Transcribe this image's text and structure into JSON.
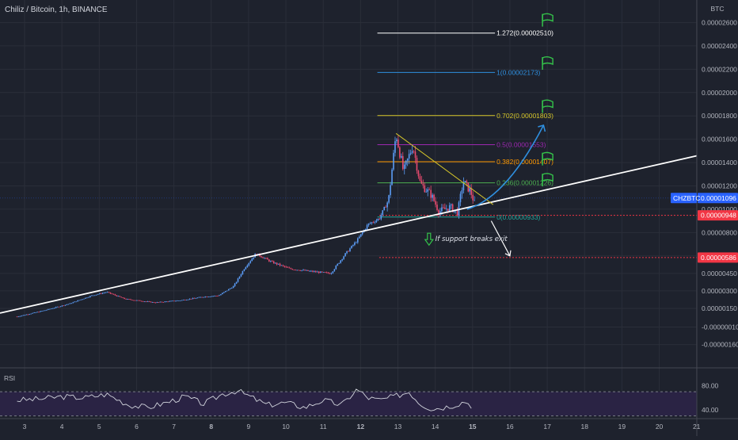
{
  "header": {
    "title": "Chiliz / Bitcoin, 1h, BINANCE"
  },
  "colors": {
    "background": "#1e222d",
    "grid": "#2a2e39",
    "candle_up": "#5b9cf6",
    "candle_down": "#e84a6f",
    "trendline": "#ffffff",
    "wedge_line": "#d6c62a",
    "projection_up": "#2f8fdf",
    "projection_down": "#ffffff",
    "rsi_line": "#d1d4dc",
    "rsi_band": "#2a2344",
    "flag": "#34c24a",
    "tag_current": "#2962ff",
    "tag_red": "#f23645"
  },
  "chart_data": {
    "type": "candlestick",
    "title": "Chiliz / Bitcoin, 1h, BINANCE",
    "y_unit": "BTC",
    "y_ticks": [
      "0.00002600",
      "0.00002400",
      "0.00002200",
      "0.00002000",
      "0.00001800",
      "0.00001600",
      "0.00001400",
      "0.00001200",
      "0.00001000",
      "0.00000800",
      "0.00000600",
      "0.00000450",
      "0.00000300",
      "0.00000150",
      "-0.00000010",
      "-0.00000160"
    ],
    "y_tick_values": [
      2.6e-05,
      2.4e-05,
      2.2e-05,
      2e-05,
      1.8e-05,
      1.6e-05,
      1.4e-05,
      1.2e-05,
      1e-05,
      8e-06,
      6e-06,
      4.5e-06,
      3e-06,
      1.5e-06,
      -1e-07,
      -1.6e-06
    ],
    "x_ticks": [
      "3",
      "4",
      "5",
      "6",
      "7",
      "8",
      "9",
      "10",
      "11",
      "12",
      "13",
      "14",
      "15",
      "16",
      "17",
      "18",
      "19",
      "20",
      "21"
    ],
    "x_tick_days": [
      3,
      4,
      5,
      6,
      7,
      8,
      9,
      10,
      11,
      12,
      13,
      14,
      15,
      16,
      17,
      18,
      19,
      20,
      21
    ],
    "price_path": [
      [
        2.8,
        8e-07
      ],
      [
        3.5,
        1.3e-06
      ],
      [
        4.2,
        1.9e-06
      ],
      [
        4.8,
        2.6e-06
      ],
      [
        5.2,
        2.9e-06
      ],
      [
        5.7,
        2.3e-06
      ],
      [
        6.5,
        2e-06
      ],
      [
        7.2,
        2.2e-06
      ],
      [
        7.8,
        2.5e-06
      ],
      [
        8.2,
        2.6e-06
      ],
      [
        8.6,
        3.4e-06
      ],
      [
        8.9,
        5e-06
      ],
      [
        9.2,
        6.2e-06
      ],
      [
        9.6,
        5.5e-06
      ],
      [
        10.1,
        4.9e-06
      ],
      [
        10.6,
        4.7e-06
      ],
      [
        11.2,
        4.5e-06
      ],
      [
        11.6,
        6.2e-06
      ],
      [
        11.9,
        7.3e-06
      ],
      [
        12.2,
        8.7e-06
      ],
      [
        12.5,
        9.2e-06
      ],
      [
        12.75,
        1.08e-05
      ],
      [
        12.95,
        1.65e-05
      ],
      [
        13.15,
        1.32e-05
      ],
      [
        13.4,
        1.55e-05
      ],
      [
        13.6,
        1.22e-05
      ],
      [
        13.9,
        1.12e-05
      ],
      [
        14.1,
        9.8e-06
      ],
      [
        14.4,
        1.02e-05
      ],
      [
        14.6,
        9.7e-06
      ],
      [
        14.75,
        1.24e-05
      ],
      [
        14.95,
        1.15e-05
      ],
      [
        15.05,
        1.05e-05
      ]
    ],
    "current_price_label": "0.00001096",
    "current_price": 1.096e-05,
    "current_symbol": "CHZBTC",
    "red_levels": [
      {
        "label": "0.00000948",
        "value": 9.48e-06
      },
      {
        "label": "0.00000586",
        "value": 5.86e-06
      }
    ],
    "fib_levels": [
      {
        "label": "1.272(0.00002510)",
        "value": 2.51e-05,
        "color": "#ffffff"
      },
      {
        "label": "1(0.00002173)",
        "value": 2.173e-05,
        "color": "#2f8fdf"
      },
      {
        "label": "0.702(0.00001803)",
        "value": 1.803e-05,
        "color": "#d6c62a"
      },
      {
        "label": "0.5(0.00001553)",
        "value": 1.553e-05,
        "color": "#9c27b0"
      },
      {
        "label": "0.382(0.00001407)",
        "value": 1.407e-05,
        "color": "#ff9800"
      },
      {
        "label": "0.236(0.00001226)",
        "value": 1.226e-05,
        "color": "#4caf50"
      },
      {
        "label": "0(0.00000933)",
        "value": 9.33e-06,
        "color": "#26a69a"
      }
    ],
    "annotation": "If support breaks exit",
    "indicator": {
      "name": "RSI",
      "ticks": [
        "80.00",
        "40.00"
      ],
      "tick_values": [
        80,
        40
      ],
      "bands": [
        70,
        30
      ],
      "path": [
        [
          2.8,
          56
        ],
        [
          3.4,
          58
        ],
        [
          4,
          62
        ],
        [
          4.6,
          60
        ],
        [
          5.2,
          66
        ],
        [
          5.8,
          48
        ],
        [
          6.3,
          44
        ],
        [
          6.8,
          52
        ],
        [
          7.3,
          62
        ],
        [
          7.8,
          50
        ],
        [
          8.3,
          66
        ],
        [
          8.7,
          72
        ],
        [
          9.1,
          60
        ],
        [
          9.5,
          48
        ],
        [
          10,
          52
        ],
        [
          10.5,
          44
        ],
        [
          11,
          56
        ],
        [
          11.5,
          48
        ],
        [
          11.9,
          74
        ],
        [
          12.2,
          60
        ],
        [
          12.5,
          56
        ],
        [
          12.9,
          62
        ],
        [
          13.3,
          70
        ],
        [
          13.6,
          50
        ],
        [
          13.9,
          42
        ],
        [
          14.2,
          44
        ],
        [
          14.5,
          48
        ],
        [
          14.8,
          54
        ],
        [
          15.05,
          44
        ]
      ]
    }
  }
}
